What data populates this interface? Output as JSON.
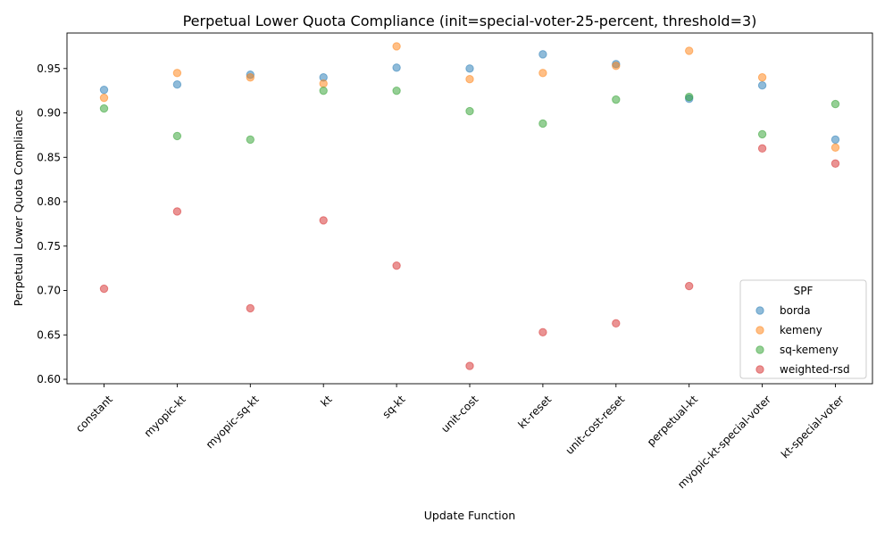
{
  "chart_data": {
    "type": "scatter",
    "title": "Perpetual Lower Quota Compliance (init=special-voter-25-percent, threshold=3)",
    "xlabel": "Update Function",
    "ylabel": "Perpetual Lower Quota Compliance",
    "categories": [
      "constant",
      "myopic-kt",
      "myopic-sq-kt",
      "kt",
      "sq-kt",
      "unit-cost",
      "kt-reset",
      "unit-cost-reset",
      "perpetual-kt",
      "myopic-kt-special-voter",
      "kt-special-voter"
    ],
    "ylim": [
      0.595,
      0.99
    ],
    "yticks": [
      0.6,
      0.65,
      0.7,
      0.75,
      0.8,
      0.85,
      0.9,
      0.95
    ],
    "ytick_labels": [
      "0.60",
      "0.65",
      "0.70",
      "0.75",
      "0.80",
      "0.85",
      "0.90",
      "0.95"
    ],
    "grid": false,
    "legend": {
      "title": "SPF",
      "placement": "lower-right"
    },
    "series": [
      {
        "name": "borda",
        "color": "#1f77b4",
        "values": [
          0.926,
          0.932,
          0.943,
          0.94,
          0.951,
          0.95,
          0.966,
          0.955,
          0.916,
          0.931,
          0.87
        ]
      },
      {
        "name": "kemeny",
        "color": "#ff7f0e",
        "values": [
          0.917,
          0.945,
          0.94,
          0.933,
          0.975,
          0.938,
          0.945,
          0.953,
          0.97,
          0.94,
          0.861
        ]
      },
      {
        "name": "sq-kemeny",
        "color": "#2ca02c",
        "values": [
          0.905,
          0.874,
          0.87,
          0.925,
          0.925,
          0.902,
          0.888,
          0.915,
          0.918,
          0.876,
          0.91
        ]
      },
      {
        "name": "weighted-rsd",
        "color": "#d62728",
        "values": [
          0.702,
          0.789,
          0.68,
          0.779,
          0.728,
          0.615,
          0.653,
          0.663,
          0.705,
          0.86,
          0.843
        ]
      }
    ]
  }
}
